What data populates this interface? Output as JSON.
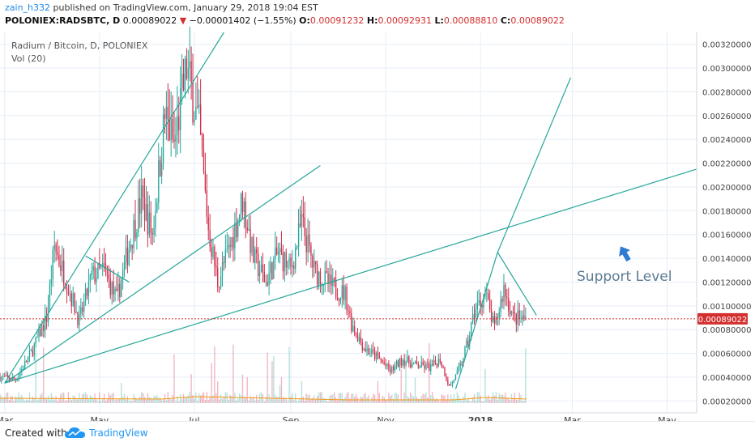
{
  "header": {
    "author": "zain_h332",
    "publish_text": "published on TradingView.com, January 29, 2018 19:04 EST",
    "symbol": "POLONIEX:RADSBTC, D",
    "price": "0.00089022",
    "down_arrow": "▼",
    "change": "−0.00001402 (−1.55%)",
    "o_label": "O:",
    "o_value": "0.00091232",
    "h_label": "H:",
    "h_value": "0.00092931",
    "l_label": "L:",
    "l_value": "0.00088810",
    "c_label": "C:",
    "c_value": "0.00089022"
  },
  "legend": {
    "series_title": "Radium / Bitcoin, D, POLONIEX",
    "volume_title": "Vol (20)"
  },
  "annotation": {
    "text": "Support Level",
    "arrow_icon": "arrow-up-icon"
  },
  "footer": {
    "created_with": "Created with",
    "brand": "TradingView",
    "logo_icon": "tradingview-cloud-icon"
  },
  "colors": {
    "up": "#26a69a",
    "down": "#d32f4d",
    "trendline": "#26a69a",
    "price_line": "#d32f2f",
    "annotation": "#5b7b94",
    "grid": "#e6eef8",
    "volume_ma": "#f39c12"
  },
  "chart_data": {
    "type": "candlestick",
    "title": "Radium / Bitcoin, D, POLONIEX",
    "x_ticks": [
      "Mar",
      "May",
      "Jul",
      "Sep",
      "Nov",
      "2018",
      "Mar",
      "May"
    ],
    "x_tick_dates": [
      "2017-03-01",
      "2017-05-01",
      "2017-07-01",
      "2017-09-01",
      "2017-11-01",
      "2018-01-01",
      "2018-03-01",
      "2018-05-01"
    ],
    "y_ticks": [
      "0.00020000",
      "0.00040000",
      "0.00060000",
      "0.00080000",
      "0.00100000",
      "0.00120000",
      "0.00140000",
      "0.00160000",
      "0.00180000",
      "0.00200000",
      "0.00220000",
      "0.00240000",
      "0.00260000",
      "0.00280000",
      "0.00300000",
      "0.00320000"
    ],
    "ylim": [
      0.0001,
      0.0033
    ],
    "last_price": 0.00089022,
    "last_price_label": "0.00089022",
    "grid": true,
    "volume_indicator": "Vol (20)",
    "path": [
      [
        "2017-02-26",
        0.0004
      ],
      [
        "2017-03-08",
        0.00038
      ],
      [
        "2017-03-18",
        0.0006
      ],
      [
        "2017-03-28",
        0.0009
      ],
      [
        "2017-04-02",
        0.0015
      ],
      [
        "2017-04-10",
        0.0012
      ],
      [
        "2017-04-18",
        0.00087
      ],
      [
        "2017-04-26",
        0.00125
      ],
      [
        "2017-05-04",
        0.0013
      ],
      [
        "2017-05-12",
        0.00105
      ],
      [
        "2017-05-20",
        0.0015
      ],
      [
        "2017-05-28",
        0.0019
      ],
      [
        "2017-06-04",
        0.0016
      ],
      [
        "2017-06-12",
        0.0026
      ],
      [
        "2017-06-18",
        0.00235
      ],
      [
        "2017-06-26",
        0.003
      ],
      [
        "2017-07-04",
        0.0025
      ],
      [
        "2017-07-10",
        0.00165
      ],
      [
        "2017-07-16",
        0.0012
      ],
      [
        "2017-07-24",
        0.0015
      ],
      [
        "2017-08-01",
        0.0019
      ],
      [
        "2017-08-08",
        0.0014
      ],
      [
        "2017-08-16",
        0.0012
      ],
      [
        "2017-08-24",
        0.00145
      ],
      [
        "2017-09-01",
        0.0013
      ],
      [
        "2017-09-08",
        0.0017
      ],
      [
        "2017-09-16",
        0.0013
      ],
      [
        "2017-09-28",
        0.00115
      ],
      [
        "2017-10-06",
        0.0011
      ],
      [
        "2017-10-10",
        0.00085
      ],
      [
        "2017-10-18",
        0.00065
      ],
      [
        "2017-10-28",
        0.00055
      ],
      [
        "2017-11-04",
        0.00045
      ],
      [
        "2017-11-12",
        0.00055
      ],
      [
        "2017-11-20",
        0.0005
      ],
      [
        "2017-11-30",
        0.00048
      ],
      [
        "2017-12-06",
        0.00055
      ],
      [
        "2017-12-12",
        0.00032
      ],
      [
        "2017-12-18",
        0.00045
      ],
      [
        "2017-12-24",
        0.0007
      ],
      [
        "2017-12-28",
        0.00095
      ],
      [
        "2018-01-04",
        0.0011
      ],
      [
        "2018-01-10",
        0.0008
      ],
      [
        "2018-01-16",
        0.00115
      ],
      [
        "2018-01-22",
        0.0009
      ],
      [
        "2018-01-30",
        0.00089
      ]
    ],
    "trendlines": [
      {
        "name": "support-level",
        "from": [
          "2017-03-01",
          0.00035
        ],
        "to": [
          "2018-05-20",
          0.00215
        ]
      },
      {
        "name": "early-support",
        "from": [
          "2017-03-01",
          0.00035
        ],
        "to": [
          "2017-09-20",
          0.00218
        ]
      },
      {
        "name": "steep-rise",
        "from": [
          "2017-03-01",
          0.00035
        ],
        "to": [
          "2017-07-20",
          0.0033
        ]
      },
      {
        "name": "wedge-top-2017",
        "from": [
          "2017-04-22",
          0.00142
        ],
        "to": [
          "2017-05-20",
          0.0012
        ]
      },
      {
        "name": "wedge-rise-2018",
        "from": [
          "2017-12-16",
          0.0003
        ],
        "to": [
          "2018-01-12",
          0.00145
        ]
      },
      {
        "name": "wedge-fall-2018",
        "from": [
          "2018-01-12",
          0.00145
        ],
        "to": [
          "2018-02-06",
          0.00092
        ]
      },
      {
        "name": "projection-2018",
        "from": [
          "2018-01-12",
          0.00145
        ],
        "to": [
          "2018-02-28",
          0.00292
        ]
      }
    ]
  }
}
